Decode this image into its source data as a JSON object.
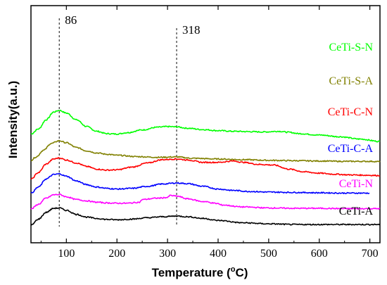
{
  "chart_data": {
    "type": "line",
    "xlabel": "Temperature (",
    "xlabel_sup": "o",
    "xlabel_unit": "C)",
    "ylabel": "Intensity(a.u.)",
    "xlim": [
      30,
      720
    ],
    "x_ticks": [
      "100",
      "200",
      "300",
      "400",
      "500",
      "600",
      "700"
    ],
    "x_tick_values": [
      100,
      200,
      300,
      400,
      500,
      600,
      700
    ],
    "y_ticks": "none",
    "grid": false,
    "legend": "series labels placed at right end of each curve",
    "annotations": [
      {
        "text": "86",
        "x": 86,
        "style": "dashed vertical line"
      },
      {
        "text": "318",
        "x": 318,
        "style": "dashed vertical line"
      }
    ],
    "series": [
      {
        "name": "CeTi-S-N",
        "color": "#00ff00",
        "offset": 2.4,
        "points": [
          [
            30,
            0.3
          ],
          [
            45,
            0.45
          ],
          [
            60,
            0.72
          ],
          [
            75,
            0.95
          ],
          [
            86,
            1.0
          ],
          [
            100,
            0.92
          ],
          [
            120,
            0.72
          ],
          [
            140,
            0.52
          ],
          [
            160,
            0.38
          ],
          [
            180,
            0.31
          ],
          [
            200,
            0.3
          ],
          [
            220,
            0.34
          ],
          [
            250,
            0.42
          ],
          [
            280,
            0.5
          ],
          [
            300,
            0.52
          ],
          [
            318,
            0.51
          ],
          [
            340,
            0.47
          ],
          [
            370,
            0.43
          ],
          [
            400,
            0.4
          ],
          [
            430,
            0.38
          ],
          [
            460,
            0.37
          ],
          [
            490,
            0.36
          ],
          [
            520,
            0.38
          ],
          [
            540,
            0.35
          ],
          [
            560,
            0.31
          ],
          [
            600,
            0.27
          ],
          [
            640,
            0.22
          ],
          [
            680,
            0.15
          ],
          [
            720,
            0.08
          ]
        ]
      },
      {
        "name": "CeTi-S-A",
        "color": "#808000",
        "offset": 1.92,
        "points": [
          [
            30,
            0.0
          ],
          [
            40,
            0.1
          ],
          [
            55,
            0.3
          ],
          [
            70,
            0.5
          ],
          [
            86,
            0.58
          ],
          [
            100,
            0.52
          ],
          [
            120,
            0.38
          ],
          [
            140,
            0.28
          ],
          [
            160,
            0.22
          ],
          [
            180,
            0.18
          ],
          [
            200,
            0.15
          ],
          [
            240,
            0.11
          ],
          [
            280,
            0.09
          ],
          [
            318,
            0.1
          ],
          [
            350,
            0.06
          ],
          [
            400,
            0.04
          ],
          [
            450,
            0.02
          ],
          [
            500,
            0.0
          ],
          [
            550,
            -0.01
          ],
          [
            600,
            -0.02
          ],
          [
            650,
            -0.03
          ],
          [
            700,
            -0.03
          ],
          [
            720,
            -0.04
          ]
        ]
      },
      {
        "name": "CeTi-C-N",
        "color": "#ff0000",
        "offset": 1.36,
        "points": [
          [
            30,
            0.0
          ],
          [
            45,
            0.2
          ],
          [
            60,
            0.45
          ],
          [
            75,
            0.6
          ],
          [
            86,
            0.63
          ],
          [
            100,
            0.57
          ],
          [
            120,
            0.48
          ],
          [
            140,
            0.38
          ],
          [
            160,
            0.3
          ],
          [
            180,
            0.27
          ],
          [
            200,
            0.28
          ],
          [
            230,
            0.36
          ],
          [
            260,
            0.48
          ],
          [
            290,
            0.58
          ],
          [
            318,
            0.6
          ],
          [
            340,
            0.57
          ],
          [
            370,
            0.5
          ],
          [
            400,
            0.5
          ],
          [
            430,
            0.54
          ],
          [
            450,
            0.5
          ],
          [
            480,
            0.44
          ],
          [
            510,
            0.42
          ],
          [
            540,
            0.3
          ],
          [
            570,
            0.22
          ],
          [
            600,
            0.18
          ],
          [
            630,
            0.15
          ],
          [
            660,
            0.13
          ],
          [
            690,
            0.12
          ],
          [
            720,
            0.11
          ]
        ]
      },
      {
        "name": "CeTi-C-A",
        "color": "#0000ff",
        "offset": 0.95,
        "points": [
          [
            30,
            0.0
          ],
          [
            45,
            0.18
          ],
          [
            60,
            0.42
          ],
          [
            75,
            0.55
          ],
          [
            86,
            0.57
          ],
          [
            100,
            0.5
          ],
          [
            120,
            0.36
          ],
          [
            140,
            0.25
          ],
          [
            160,
            0.18
          ],
          [
            180,
            0.14
          ],
          [
            200,
            0.12
          ],
          [
            230,
            0.14
          ],
          [
            260,
            0.2
          ],
          [
            290,
            0.27
          ],
          [
            318,
            0.3
          ],
          [
            340,
            0.28
          ],
          [
            370,
            0.2
          ],
          [
            400,
            0.12
          ],
          [
            430,
            0.08
          ],
          [
            460,
            0.05
          ],
          [
            500,
            0.03
          ],
          [
            550,
            0.02
          ],
          [
            600,
            0.01
          ],
          [
            650,
            0.0
          ],
          [
            700,
            0.0
          ]
        ]
      },
      {
        "name": "CeTi-N",
        "color": "#ff00ff",
        "offset": 0.48,
        "points": [
          [
            30,
            0.0
          ],
          [
            45,
            0.14
          ],
          [
            60,
            0.32
          ],
          [
            75,
            0.42
          ],
          [
            86,
            0.43
          ],
          [
            100,
            0.36
          ],
          [
            120,
            0.28
          ],
          [
            140,
            0.24
          ],
          [
            160,
            0.2
          ],
          [
            180,
            0.18
          ],
          [
            200,
            0.17
          ],
          [
            220,
            0.17
          ],
          [
            245,
            0.2
          ],
          [
            250,
            0.28
          ],
          [
            280,
            0.32
          ],
          [
            300,
            0.34
          ],
          [
            305,
            0.4
          ],
          [
            318,
            0.38
          ],
          [
            340,
            0.3
          ],
          [
            370,
            0.22
          ],
          [
            400,
            0.16
          ],
          [
            405,
            0.12
          ],
          [
            450,
            0.06
          ],
          [
            500,
            0.03
          ],
          [
            550,
            0.02
          ],
          [
            600,
            0.02
          ],
          [
            650,
            0.01
          ],
          [
            700,
            0.01
          ],
          [
            720,
            0.01
          ]
        ]
      },
      {
        "name": "CeTi-A",
        "color": "#000000",
        "offset": 0.0,
        "points": [
          [
            30,
            0.0
          ],
          [
            45,
            0.18
          ],
          [
            60,
            0.38
          ],
          [
            75,
            0.5
          ],
          [
            86,
            0.51
          ],
          [
            100,
            0.44
          ],
          [
            120,
            0.32
          ],
          [
            140,
            0.24
          ],
          [
            160,
            0.2
          ],
          [
            180,
            0.17
          ],
          [
            200,
            0.16
          ],
          [
            230,
            0.18
          ],
          [
            260,
            0.22
          ],
          [
            290,
            0.25
          ],
          [
            318,
            0.27
          ],
          [
            340,
            0.25
          ],
          [
            370,
            0.2
          ],
          [
            400,
            0.14
          ],
          [
            450,
            0.07
          ],
          [
            500,
            0.04
          ],
          [
            550,
            0.02
          ],
          [
            600,
            0.02
          ],
          [
            650,
            0.02
          ],
          [
            700,
            0.02
          ],
          [
            720,
            0.02
          ]
        ]
      }
    ],
    "colors": {
      "axis": "#000000",
      "annotation_line": "#333333"
    }
  }
}
